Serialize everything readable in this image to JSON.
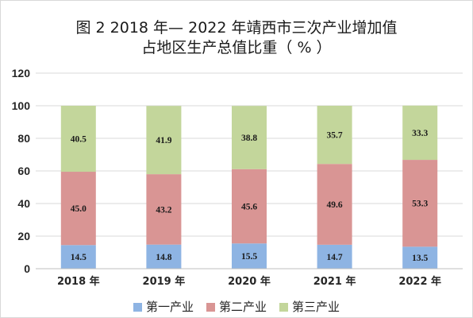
{
  "chart_data": {
    "type": "bar",
    "stacked": true,
    "title": "图 2      2018 年— 2022 年靖西市三次产业增加值",
    "subtitle": "占地区生产总值比重（  %  ）",
    "categories": [
      "2018 年",
      "2019 年",
      "2020 年",
      "2021 年",
      "2022 年"
    ],
    "series": [
      {
        "name": "第一产业",
        "color": "#8eb4e3",
        "values": [
          14.5,
          14.8,
          15.5,
          14.7,
          13.5
        ]
      },
      {
        "name": "第二产业",
        "color": "#d99594",
        "values": [
          45.0,
          43.2,
          45.6,
          49.6,
          53.3
        ]
      },
      {
        "name": "第三产业",
        "color": "#c3d69b",
        "values": [
          40.5,
          41.9,
          38.8,
          35.7,
          33.3
        ]
      }
    ],
    "yticks": [
      0,
      20,
      40,
      60,
      80,
      100,
      120
    ],
    "ylim": [
      0,
      120
    ],
    "grid": true,
    "legend_position": "bottom",
    "data_labels": true
  }
}
